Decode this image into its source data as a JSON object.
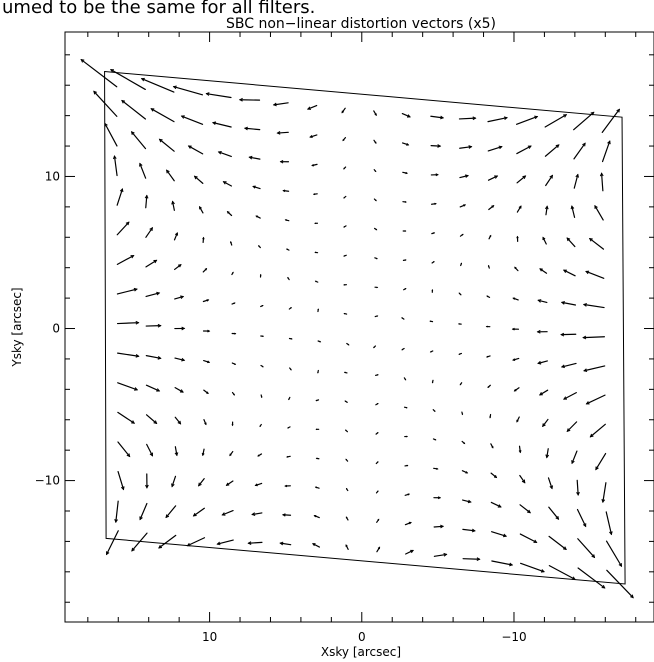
{
  "caption": "umed to be the same for all filters.",
  "chart_data": {
    "type": "quiver",
    "title": "SBC non−linear distortion vectors (x5)",
    "xlabel": "Xsky [arcsec]",
    "ylabel": "Ysky [arcsec]",
    "xlim": [
      19.5,
      -19.2
    ],
    "ylim": [
      -19.3,
      19.5
    ],
    "x_ticks": [
      10,
      0,
      -10
    ],
    "y_ticks": [
      10,
      0,
      -10
    ],
    "x_tick_labels": [
      "10",
      "0",
      "−10"
    ],
    "y_tick_labels": [
      "10",
      "0",
      "−10"
    ],
    "vector_scale": 5,
    "aperture_outline": [
      [
        16.9,
        16.9
      ],
      [
        -17.1,
        13.9
      ],
      [
        -17.3,
        -16.8
      ],
      [
        16.8,
        -13.8
      ]
    ],
    "grid": {
      "columns": 18,
      "rows": 16,
      "corners": {
        "top_left": [
          16.1,
          15.9
        ],
        "top_right": [
          -15.8,
          12.9
        ],
        "bottom_right": [
          -16.1,
          -15.9
        ],
        "bottom_left": [
          16.0,
          -13.3
        ]
      },
      "note": "vector field sampled on this grid"
    },
    "grid_on": false,
    "legend": "none"
  }
}
